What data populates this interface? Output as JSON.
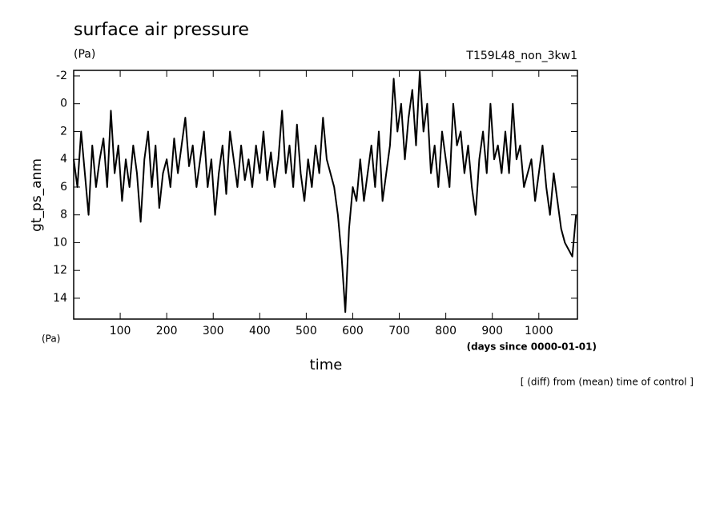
{
  "chart_data": {
    "type": "line",
    "title": "surface air pressure",
    "title_unit": "(Pa)",
    "run_label": "T159L48_non_3kw1",
    "y_label": "gt_ps_anm",
    "y_unit": "(Pa)",
    "x_label": "time",
    "x_unit": "(days since 0000-01-01)",
    "note": "[ (diff) from (mean) time of control ]",
    "xlim": [
      0,
      1083
    ],
    "ylim": [
      15.5,
      -2.4
    ],
    "xticks": [
      100,
      200,
      300,
      400,
      500,
      600,
      700,
      800,
      900,
      1000
    ],
    "yticks": [
      -2,
      0,
      2,
      4,
      6,
      8,
      10,
      12,
      14
    ],
    "x": [
      0,
      8,
      16,
      24,
      32,
      40,
      48,
      56,
      64,
      72,
      80,
      88,
      96,
      104,
      112,
      120,
      128,
      136,
      144,
      152,
      160,
      168,
      176,
      184,
      192,
      200,
      208,
      216,
      224,
      232,
      240,
      248,
      256,
      264,
      272,
      280,
      288,
      296,
      304,
      312,
      320,
      328,
      336,
      344,
      352,
      360,
      368,
      376,
      384,
      392,
      400,
      408,
      416,
      424,
      432,
      440,
      448,
      456,
      464,
      472,
      480,
      488,
      496,
      504,
      512,
      520,
      528,
      536,
      544,
      552,
      560,
      568,
      576,
      584,
      592,
      600,
      608,
      616,
      624,
      632,
      640,
      648,
      656,
      664,
      672,
      680,
      688,
      696,
      704,
      712,
      720,
      728,
      736,
      744,
      752,
      760,
      768,
      776,
      784,
      792,
      800,
      808,
      816,
      824,
      832,
      840,
      848,
      856,
      864,
      872,
      880,
      888,
      896,
      904,
      912,
      920,
      928,
      936,
      944,
      952,
      960,
      968,
      976,
      984,
      992,
      1000,
      1008,
      1016,
      1024,
      1032,
      1040,
      1048,
      1056,
      1064,
      1072,
      1080
    ],
    "series": [
      {
        "name": "gt_ps_anm",
        "color": "#000000",
        "values": [
          4,
          6,
          2,
          5,
          8,
          3,
          6,
          4,
          2.5,
          6,
          0.5,
          5,
          3,
          7,
          4,
          6,
          3,
          5,
          8.5,
          4,
          2,
          6,
          3,
          7.5,
          5,
          4,
          6,
          2.5,
          5,
          3,
          1,
          4.5,
          3,
          6,
          4,
          2,
          6,
          4,
          8,
          5,
          3,
          6.5,
          2,
          4,
          6,
          3,
          5.5,
          4,
          6,
          3,
          5,
          2,
          5.5,
          3.5,
          6,
          4,
          0.5,
          5,
          3,
          6,
          1.5,
          5,
          7,
          4,
          6,
          3,
          5,
          1,
          4,
          5,
          6,
          8,
          11,
          15,
          9,
          6,
          7,
          4,
          7,
          5,
          3,
          6,
          2,
          7,
          5,
          3,
          -1.8,
          2,
          0,
          4,
          1,
          -1,
          3,
          -2.3,
          2,
          0,
          5,
          3,
          6,
          2,
          4,
          6,
          0,
          3,
          2,
          5,
          3,
          6,
          8,
          4,
          2,
          5,
          0,
          4,
          3,
          5,
          2,
          5,
          0,
          4,
          3,
          6,
          5,
          4,
          7,
          5,
          3,
          6,
          8,
          5,
          7,
          9,
          10,
          10.5,
          11,
          8
        ]
      }
    ]
  }
}
